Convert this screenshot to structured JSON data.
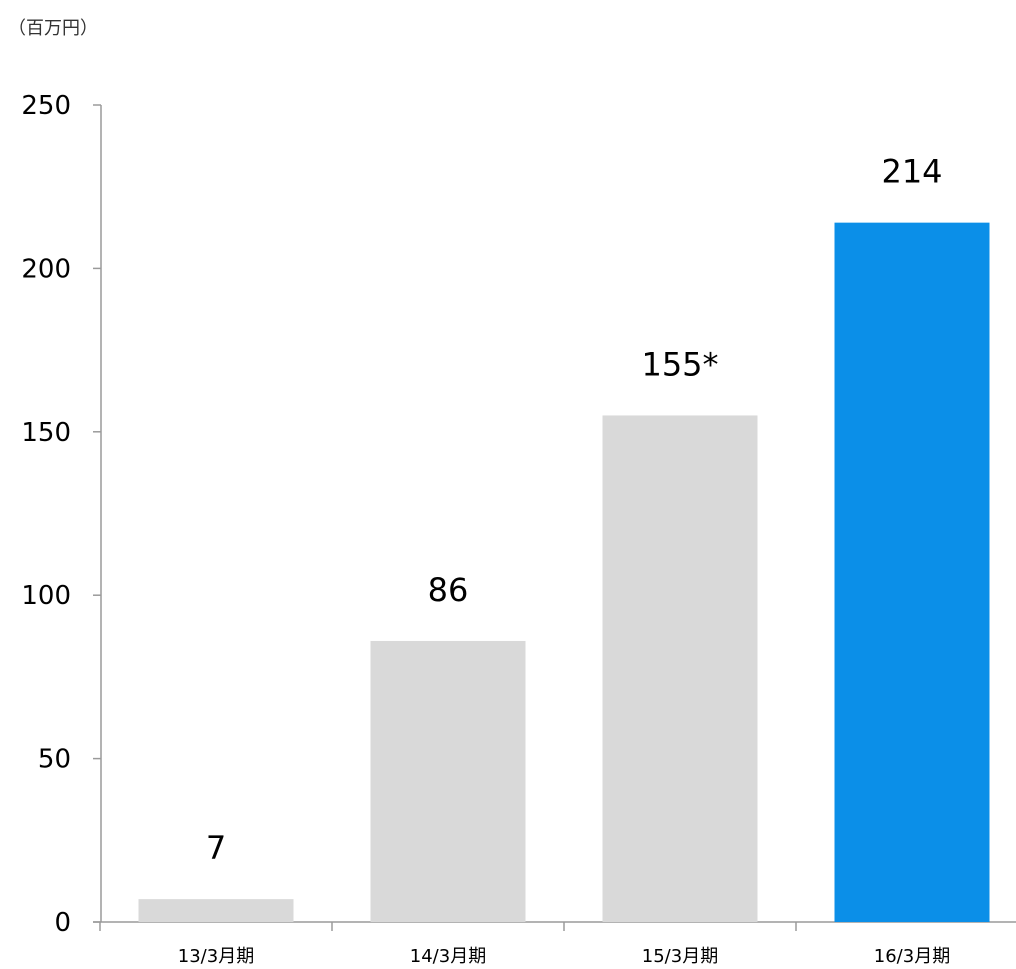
{
  "unit_label": "（百万円）",
  "chart_data": {
    "type": "bar",
    "title": "",
    "xlabel": "",
    "ylabel": "（百万円）",
    "ylim": [
      0,
      250
    ],
    "yticks": [
      0,
      50,
      100,
      150,
      200,
      250
    ],
    "grid": false,
    "categories": [
      "13/3月期",
      "14/3月期",
      "15/3月期",
      "16/3月期"
    ],
    "values": [
      7,
      86,
      155,
      214
    ],
    "data_labels": [
      "7",
      "86",
      "155*",
      "214"
    ],
    "colors": [
      "#d9d9d9",
      "#d9d9d9",
      "#d9d9d9",
      "#0b8fe8"
    ]
  }
}
